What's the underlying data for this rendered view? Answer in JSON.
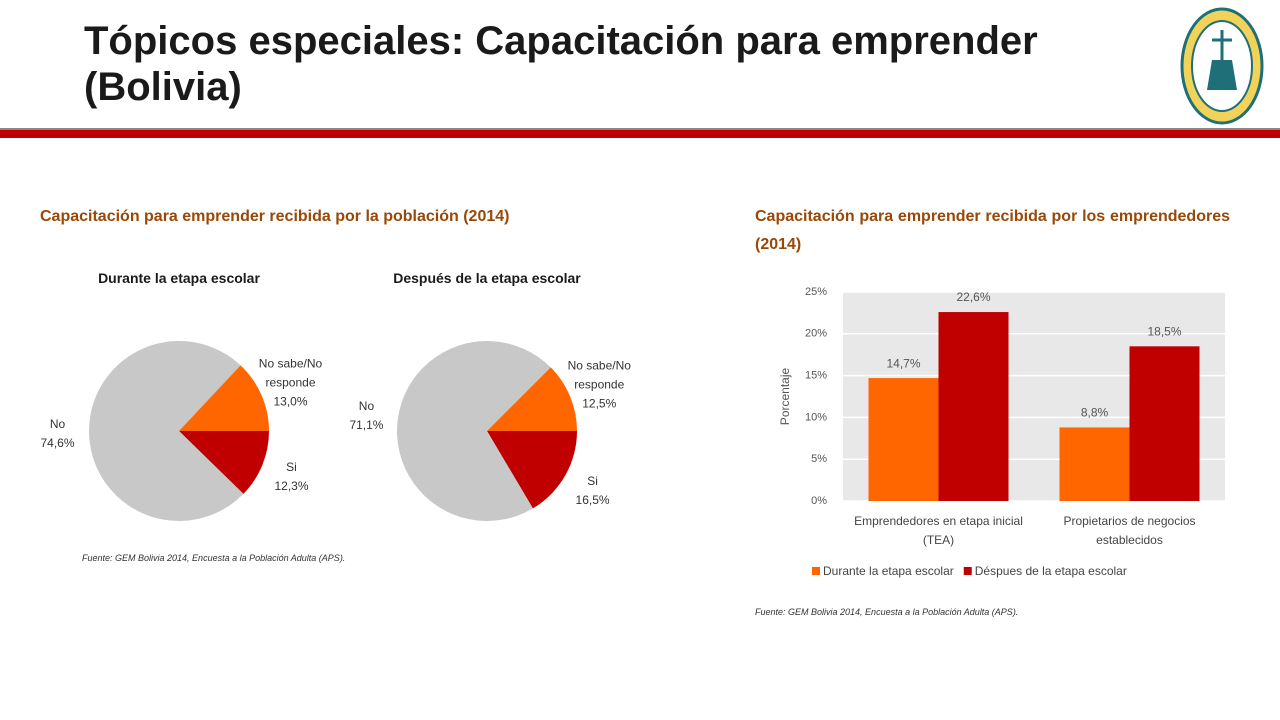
{
  "title": "Tópicos especiales: Capacitación para emprender (Bolivia)",
  "sections": [
    {
      "heading": "Capacitación para emprender recibida por la población (2014)",
      "source": "Fuente: GEM Bolivia 2014, Encuesta a la Población Adulta (APS)."
    },
    {
      "heading": "Capacitación para emprender recibida por los emprendedores (2014)",
      "source": "Fuente: GEM Bolivia 2014, Encuesta a la Población Adulta (APS)."
    }
  ],
  "chart_data": [
    {
      "type": "pie",
      "title": "Durante la etapa escolar",
      "categories": [
        "Si",
        "No",
        "No sabe/No responde"
      ],
      "values": [
        12.3,
        74.6,
        13.0
      ],
      "value_labels": [
        "12,3%",
        "74,6%",
        "13,0%"
      ],
      "colors": [
        "#c00000",
        "#c8c8c8",
        "#ff6600"
      ]
    },
    {
      "type": "pie",
      "title": "Después de la etapa escolar",
      "categories": [
        "Si",
        "No",
        "No sabe/No responde"
      ],
      "values": [
        16.5,
        71.1,
        12.5
      ],
      "value_labels": [
        "16,5%",
        "71,1%",
        "12,5%"
      ],
      "colors": [
        "#c00000",
        "#c8c8c8",
        "#ff6600"
      ]
    },
    {
      "type": "bar",
      "y_label": "Porcentaje",
      "categories": [
        "Emprendedores en etapa inicial (TEA)",
        "Propietarios de negocios establecidos"
      ],
      "series": [
        {
          "name": "Durante la etapa escolar",
          "color": "#ff6600",
          "values": [
            14.7,
            8.8
          ],
          "value_labels": [
            "14,7%",
            "8,8%"
          ]
        },
        {
          "name": "Déspues de la etapa escolar",
          "color": "#c00000",
          "values": [
            22.6,
            18.5
          ],
          "value_labels": [
            "22,6%",
            "18,5%"
          ]
        }
      ],
      "ylim": [
        0,
        25
      ],
      "yticks": [
        {
          "value": 0,
          "label": "0%"
        },
        {
          "value": 5,
          "label": "5%"
        },
        {
          "value": 10,
          "label": "10%"
        },
        {
          "value": 15,
          "label": "15%"
        },
        {
          "value": 20,
          "label": "20%"
        },
        {
          "value": 25,
          "label": "25%"
        }
      ],
      "grid": true,
      "legend": "bottom"
    }
  ]
}
